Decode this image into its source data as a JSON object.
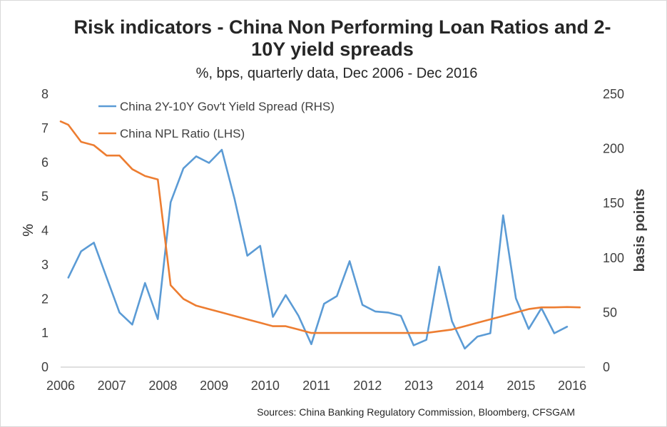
{
  "chart_data": {
    "type": "line",
    "title_line1": "Risk indicators - China Non Performing Loan Ratios and 2-",
    "title_line2": "10Y yield spreads",
    "subtitle": "%, bps, quarterly data, Dec 2006 - Dec 2016",
    "ylabel_left": "%",
    "ylabel_right": "basis points",
    "ylim_left": [
      0,
      8
    ],
    "ylim_right": [
      0,
      250
    ],
    "yticks_left": [
      "0",
      "1",
      "2",
      "3",
      "4",
      "5",
      "6",
      "7",
      "8"
    ],
    "yticks_right": [
      "0",
      "50",
      "100",
      "150",
      "200",
      "250"
    ],
    "xlim": [
      2006,
      2016.25
    ],
    "xticks": [
      "2006",
      "2007",
      "2008",
      "2009",
      "2010",
      "2011",
      "2012",
      "2013",
      "2014",
      "2015",
      "2016"
    ],
    "source": "Sources: China Banking Regulatory Commission, Bloomberg, CFSGAM",
    "series": [
      {
        "name": "China 2Y-10Y Gov't Yield Spread (RHS)",
        "axis": "right",
        "color": "#5b9bd5",
        "x": [
          2006.15,
          2006.4,
          2006.65,
          2006.9,
          2007.15,
          2007.4,
          2007.65,
          2007.9,
          2008.15,
          2008.4,
          2008.65,
          2008.9,
          2009.15,
          2009.4,
          2009.65,
          2009.9,
          2010.15,
          2010.4,
          2010.65,
          2010.9,
          2011.15,
          2011.4,
          2011.65,
          2011.9,
          2012.15,
          2012.4,
          2012.65,
          2012.9,
          2013.15,
          2013.4,
          2013.65,
          2013.9,
          2014.15,
          2014.4,
          2014.65,
          2014.9,
          2015.15,
          2015.4,
          2015.65,
          2015.9
        ],
        "values": [
          82,
          106,
          114,
          82,
          50,
          39,
          77,
          44,
          151,
          182,
          193,
          187,
          199,
          154,
          102,
          111,
          46,
          66,
          47,
          21,
          58,
          65,
          97,
          57,
          51,
          50,
          47,
          20,
          25,
          92,
          42,
          17,
          28,
          31,
          139,
          63,
          35,
          54,
          31,
          37
        ]
      },
      {
        "name": "China NPL Ratio (LHS)",
        "axis": "left",
        "color": "#ed7d31",
        "x": [
          2006.0,
          2006.15,
          2006.4,
          2006.65,
          2006.9,
          2007.15,
          2007.4,
          2007.65,
          2007.9,
          2008.15,
          2008.4,
          2008.65,
          2008.9,
          2009.15,
          2009.4,
          2009.65,
          2009.9,
          2010.15,
          2010.4,
          2010.65,
          2010.9,
          2011.15,
          2011.4,
          2011.65,
          2011.9,
          2012.15,
          2012.4,
          2012.65,
          2012.9,
          2013.15,
          2013.4,
          2013.65,
          2013.9,
          2014.15,
          2014.4,
          2014.65,
          2014.9,
          2015.15,
          2015.4,
          2015.65,
          2015.9,
          2016.15
        ],
        "values": [
          7.2,
          7.1,
          6.6,
          6.5,
          6.2,
          6.2,
          5.8,
          5.6,
          5.5,
          2.4,
          2.0,
          1.8,
          1.7,
          1.6,
          1.5,
          1.4,
          1.3,
          1.2,
          1.2,
          1.1,
          1.0,
          1.0,
          1.0,
          1.0,
          1.0,
          1.0,
          1.0,
          1.0,
          1.0,
          1.0,
          1.05,
          1.1,
          1.2,
          1.3,
          1.4,
          1.5,
          1.6,
          1.7,
          1.75,
          1.75,
          1.76,
          1.75
        ]
      }
    ]
  }
}
